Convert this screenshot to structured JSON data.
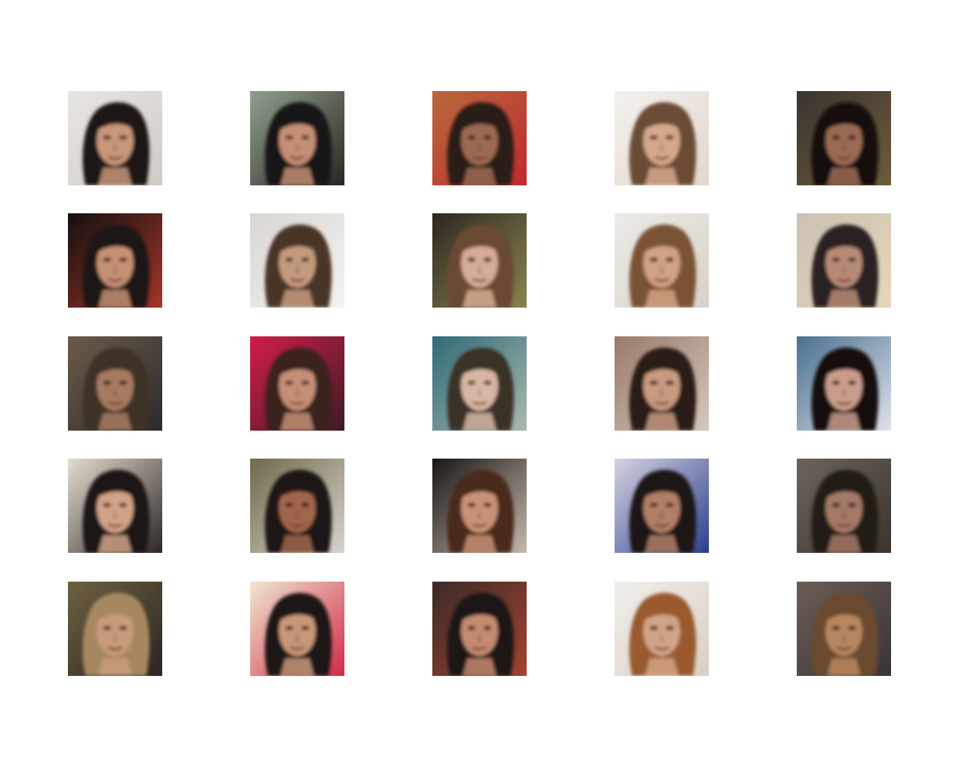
{
  "figure": {
    "rows": 5,
    "cols": 5,
    "tiles": [
      {
        "bg": "#e8e6e2",
        "bg2": "#cfcac4",
        "skin": "#c8967a",
        "hair": "#1c1714"
      },
      {
        "bg": "#8fa08e",
        "bg2": "#2b2622",
        "skin": "#c48f74",
        "hair": "#171312"
      },
      {
        "bg": "#b8693c",
        "bg2": "#c02a2e",
        "skin": "#9c6a52",
        "hair": "#2a1d18"
      },
      {
        "bg": "#f3f1ee",
        "bg2": "#e2d7cc",
        "skin": "#d6a88b",
        "hair": "#6b4b35"
      },
      {
        "bg": "#3a3430",
        "bg2": "#6e5b3b",
        "skin": "#9b6b55",
        "hair": "#120f0e"
      },
      {
        "bg": "#14110f",
        "bg2": "#a5352a",
        "skin": "#c69073",
        "hair": "#1d1612"
      },
      {
        "bg": "#d9d6d2",
        "bg2": "#f4f3f1",
        "skin": "#c49a7e",
        "hair": "#4a3527"
      },
      {
        "bg": "#2d2720",
        "bg2": "#8a8452",
        "skin": "#d7ab95",
        "hair": "#6b4a33"
      },
      {
        "bg": "#ecebe8",
        "bg2": "#d9d1c8",
        "skin": "#d2a285",
        "hair": "#7a5334"
      },
      {
        "bg": "#c9c1b4",
        "bg2": "#e6d7b8",
        "skin": "#b88a75",
        "hair": "#2a2320"
      },
      {
        "bg": "#6b5b4a",
        "bg2": "#2c2a2d",
        "skin": "#a77a62",
        "hair": "#3d3128"
      },
      {
        "bg": "#d21c4a",
        "bg2": "#3d1b24",
        "skin": "#c48f76",
        "hair": "#3b231a"
      },
      {
        "bg": "#2f6a78",
        "bg2": "#aab9ad",
        "skin": "#d8b8a4",
        "hair": "#3a3026"
      },
      {
        "bg": "#9a7a6a",
        "bg2": "#d6c8bd",
        "skin": "#c89a80",
        "hair": "#2c1f17"
      },
      {
        "bg": "#49708f",
        "bg2": "#dfe2ea",
        "skin": "#c99d8b",
        "hair": "#14110f"
      },
      {
        "bg": "#e4ddd2",
        "bg2": "#2d2724",
        "skin": "#d2a388",
        "hair": "#1c1613"
      },
      {
        "bg": "#6e6a4a",
        "bg2": "#d9d5cf",
        "skin": "#a0664b",
        "hair": "#1e1612"
      },
      {
        "bg": "#191614",
        "bg2": "#c6b9ad",
        "skin": "#c89277",
        "hair": "#4a2a1c"
      },
      {
        "bg": "#d6d3e3",
        "bg2": "#2a3f8c",
        "skin": "#b07f66",
        "hair": "#1a1615"
      },
      {
        "bg": "#6b655c",
        "bg2": "#3b332e",
        "skin": "#a47966",
        "hair": "#241b16"
      },
      {
        "bg": "#6d6140",
        "bg2": "#2b2522",
        "skin": "#c79b7c",
        "hair": "#a7875e"
      },
      {
        "bg": "#f0e7d0",
        "bg2": "#d02a47",
        "skin": "#c89678",
        "hair": "#1b1614"
      },
      {
        "bg": "#3a2b27",
        "bg2": "#a3432f",
        "skin": "#c48b70",
        "hair": "#1f1713"
      },
      {
        "bg": "#f0eeeb",
        "bg2": "#d9cfc4",
        "skin": "#d2a487",
        "hair": "#9a5a2e"
      },
      {
        "bg": "#6b5d55",
        "bg2": "#3a3436",
        "skin": "#b7865e",
        "hair": "#6a4a2e"
      }
    ]
  }
}
